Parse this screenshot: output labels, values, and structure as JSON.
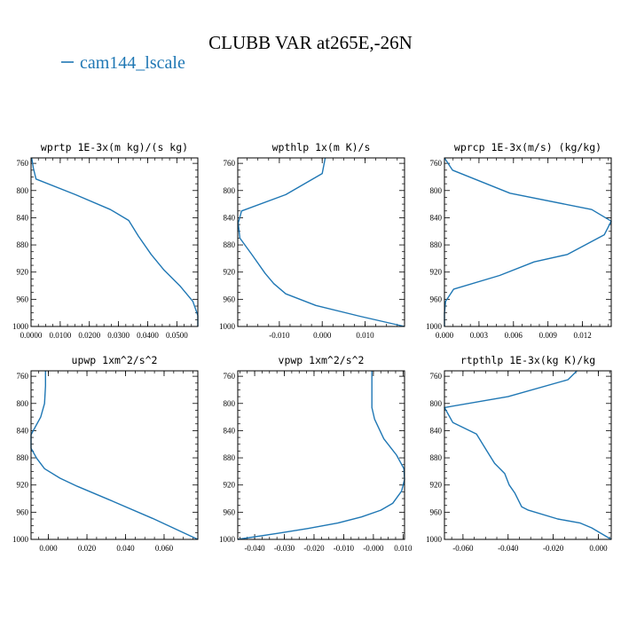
{
  "figure": {
    "title": "CLUBB VAR at265E,-26N",
    "legend": [
      {
        "label": "cam144_lscale",
        "color": "#1f77b4"
      }
    ]
  },
  "chart_data": [
    {
      "type": "line",
      "title": "wprtp  1E-3x(m kg)/(s kg)",
      "xlim": [
        0.0,
        0.0572
      ],
      "ylim": [
        1000,
        752
      ],
      "xticks": [
        0.0,
        0.01,
        0.02,
        0.03,
        0.04,
        0.05
      ],
      "xtick_labels": [
        "0.0000",
        "0.0100",
        "0.0200",
        "0.0300",
        "0.0400",
        "0.0500"
      ],
      "yticks": [
        760,
        800,
        840,
        880,
        920,
        960,
        1000
      ],
      "ytick_labels": [
        "760",
        "800",
        "840",
        "880",
        "920",
        "960",
        "1000"
      ],
      "series": [
        {
          "color": "#1f77b4",
          "x": [
            0.0002,
            0.0008,
            0.0017,
            0.0152,
            0.0272,
            0.0335,
            0.0368,
            0.0412,
            0.0456,
            0.0512,
            0.0555,
            0.0572,
            0.0572
          ],
          "y": [
            752,
            767,
            783,
            806,
            828,
            844,
            867,
            894,
            917,
            941,
            963,
            984,
            1000
          ]
        }
      ]
    },
    {
      "type": "line",
      "title": "wpthlp  1x(m K)/s",
      "xlim": [
        -0.0197,
        0.0192
      ],
      "ylim": [
        1000,
        752
      ],
      "xticks": [
        -0.01,
        0.0,
        0.01
      ],
      "xtick_labels": [
        "-0.010",
        "0.000",
        "0.010"
      ],
      "yticks": [
        760,
        800,
        840,
        880,
        920,
        960,
        1000
      ],
      "ytick_labels": [
        "760",
        "800",
        "840",
        "880",
        "920",
        "960",
        "1000"
      ],
      "series": [
        {
          "color": "#1f77b4",
          "x": [
            0.0007,
            0.0,
            -0.0085,
            -0.0188,
            -0.0196,
            -0.0192,
            -0.0163,
            -0.0133,
            -0.0113,
            -0.0085,
            -0.0015,
            0.0088,
            0.0192
          ],
          "y": [
            752,
            775,
            806,
            830,
            848,
            870,
            895,
            922,
            937,
            952,
            969,
            985,
            1000
          ]
        }
      ]
    },
    {
      "type": "line",
      "title": "wprcp  1E-3x(m/s) (kg/kg)",
      "xlim": [
        0.0,
        0.0145
      ],
      "ylim": [
        1000,
        752
      ],
      "xticks": [
        0.0,
        0.003,
        0.006,
        0.009,
        0.012
      ],
      "xtick_labels": [
        "0.000",
        "0.003",
        "0.006",
        "0.009",
        "0.012"
      ],
      "yticks": [
        760,
        800,
        840,
        880,
        920,
        960,
        1000
      ],
      "ytick_labels": [
        "760",
        "800",
        "840",
        "880",
        "920",
        "960",
        "1000"
      ],
      "series": [
        {
          "color": "#1f77b4",
          "x": [
            0.0,
            0.0007,
            0.0057,
            0.0128,
            0.0145,
            0.0139,
            0.0107,
            0.0078,
            0.0048,
            0.0008,
            0.0001,
            0.0,
            0.0
          ],
          "y": [
            752,
            770,
            804,
            828,
            845,
            865,
            894,
            905,
            925,
            945,
            963,
            980,
            1000
          ]
        }
      ]
    },
    {
      "type": "line",
      "title": "upwp  1xm^2/s^2",
      "xlim": [
        -0.009,
        0.0775
      ],
      "ylim": [
        1000,
        752
      ],
      "xticks": [
        0.0,
        0.02,
        0.04,
        0.06
      ],
      "xtick_labels": [
        "0.000",
        "0.020",
        "0.040",
        "0.060"
      ],
      "yticks": [
        760,
        800,
        840,
        880,
        920,
        960,
        1000
      ],
      "ytick_labels": [
        "760",
        "800",
        "840",
        "880",
        "920",
        "960",
        "1000"
      ],
      "series": [
        {
          "color": "#1f77b4",
          "x": [
            -0.0015,
            -0.0015,
            -0.002,
            -0.004,
            -0.009,
            -0.009,
            -0.006,
            -0.002,
            0.006,
            0.015,
            0.031,
            0.054,
            0.0775
          ],
          "y": [
            752,
            774,
            800,
            820,
            846,
            866,
            881,
            896,
            910,
            922,
            941,
            969,
            1000
          ]
        }
      ]
    },
    {
      "type": "line",
      "title": "vpwp  1xm^2/s^2",
      "xlim": [
        -0.0457,
        0.0105
      ],
      "ylim": [
        1000,
        752
      ],
      "xticks": [
        -0.04,
        -0.03,
        -0.02,
        -0.01,
        0.0,
        0.01
      ],
      "xtick_labels": [
        "-0.040",
        "-0.030",
        "-0.020",
        "-0.010",
        "-0.000",
        "0.010"
      ],
      "yticks": [
        760,
        800,
        840,
        880,
        920,
        960,
        1000
      ],
      "ytick_labels": [
        "760",
        "800",
        "840",
        "880",
        "920",
        "960",
        "1000"
      ],
      "series": [
        {
          "color": "#1f77b4",
          "x": [
            -0.0005,
            -0.0005,
            -0.0005,
            0.0004,
            0.0035,
            0.0078,
            0.0103,
            0.0105,
            0.0095,
            0.0065,
            0.0025,
            -0.004,
            -0.012,
            -0.022,
            -0.032,
            -0.0457
          ],
          "y": [
            752,
            780,
            806,
            823,
            852,
            876,
            896,
            912,
            929,
            947,
            957,
            967,
            976,
            984,
            991,
            1000
          ]
        }
      ]
    },
    {
      "type": "line",
      "title": "rtpthlp  1E-3x(kg K)/kg",
      "xlim": [
        -0.0682,
        0.0057
      ],
      "ylim": [
        1000,
        752
      ],
      "xticks": [
        -0.06,
        -0.04,
        -0.02,
        0.0
      ],
      "xtick_labels": [
        "-0.060",
        "-0.040",
        "-0.020",
        "0.000"
      ],
      "yticks": [
        760,
        800,
        840,
        880,
        920,
        960,
        1000
      ],
      "ytick_labels": [
        "760",
        "800",
        "840",
        "880",
        "920",
        "960",
        "1000"
      ],
      "series": [
        {
          "color": "#1f77b4",
          "x": [
            -0.0095,
            -0.0135,
            -0.04,
            -0.0682,
            -0.0645,
            -0.054,
            -0.049,
            -0.046,
            -0.0415,
            -0.0395,
            -0.037,
            -0.034,
            -0.031,
            -0.018,
            -0.008,
            -0.003,
            0.0057
          ],
          "y": [
            752,
            765,
            790,
            806,
            828,
            845,
            872,
            888,
            903,
            920,
            932,
            952,
            957,
            970,
            976,
            983,
            1000
          ]
        }
      ]
    }
  ]
}
